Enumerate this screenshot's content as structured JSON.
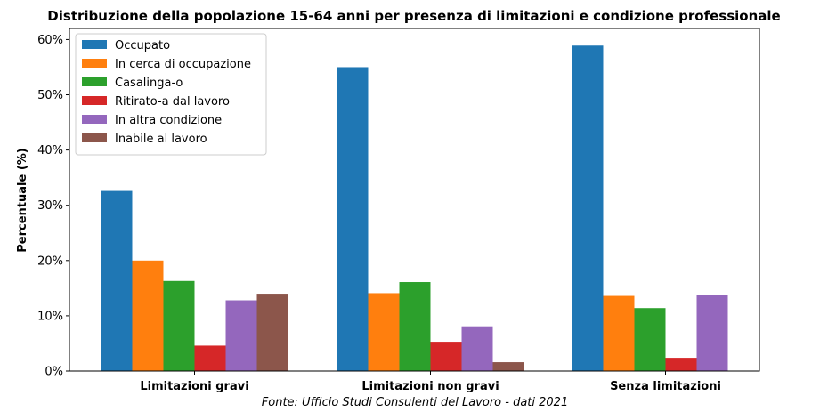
{
  "chart_data": {
    "type": "bar",
    "title": "Distribuzione della popolazione 15-64 anni per presenza di limitazioni e condizione professionale",
    "xlabel": "",
    "ylabel": "Percentuale (%)",
    "ylim": [
      0,
      62
    ],
    "yticks": [
      0,
      10,
      20,
      30,
      40,
      50,
      60
    ],
    "ytick_labels": [
      "0%",
      "10%",
      "20%",
      "30%",
      "40%",
      "50%",
      "60%"
    ],
    "categories": [
      "Limitazioni gravi",
      "Limitazioni non gravi",
      "Senza limitazioni"
    ],
    "series": [
      {
        "name": "Occupato",
        "color": "#1f77b4",
        "values": [
          32.6,
          55.0,
          58.9
        ]
      },
      {
        "name": "In cerca di occupazione",
        "color": "#ff7f0e",
        "values": [
          20.0,
          14.1,
          13.6
        ]
      },
      {
        "name": "Casalinga-o",
        "color": "#2ca02c",
        "values": [
          16.3,
          16.1,
          11.4
        ]
      },
      {
        "name": "Ritirato-a dal lavoro",
        "color": "#d62728",
        "values": [
          4.6,
          5.3,
          2.4
        ]
      },
      {
        "name": "In altra condizione",
        "color": "#9467bd",
        "values": [
          12.8,
          8.1,
          13.8
        ]
      },
      {
        "name": "Inabile al lavoro",
        "color": "#8c564b",
        "values": [
          14.0,
          1.6,
          0
        ]
      }
    ],
    "legend_position": "top-left",
    "grid": false,
    "source_note": "Fonte: Ufficio Studi Consulenti del Lavoro - dati 2021"
  }
}
